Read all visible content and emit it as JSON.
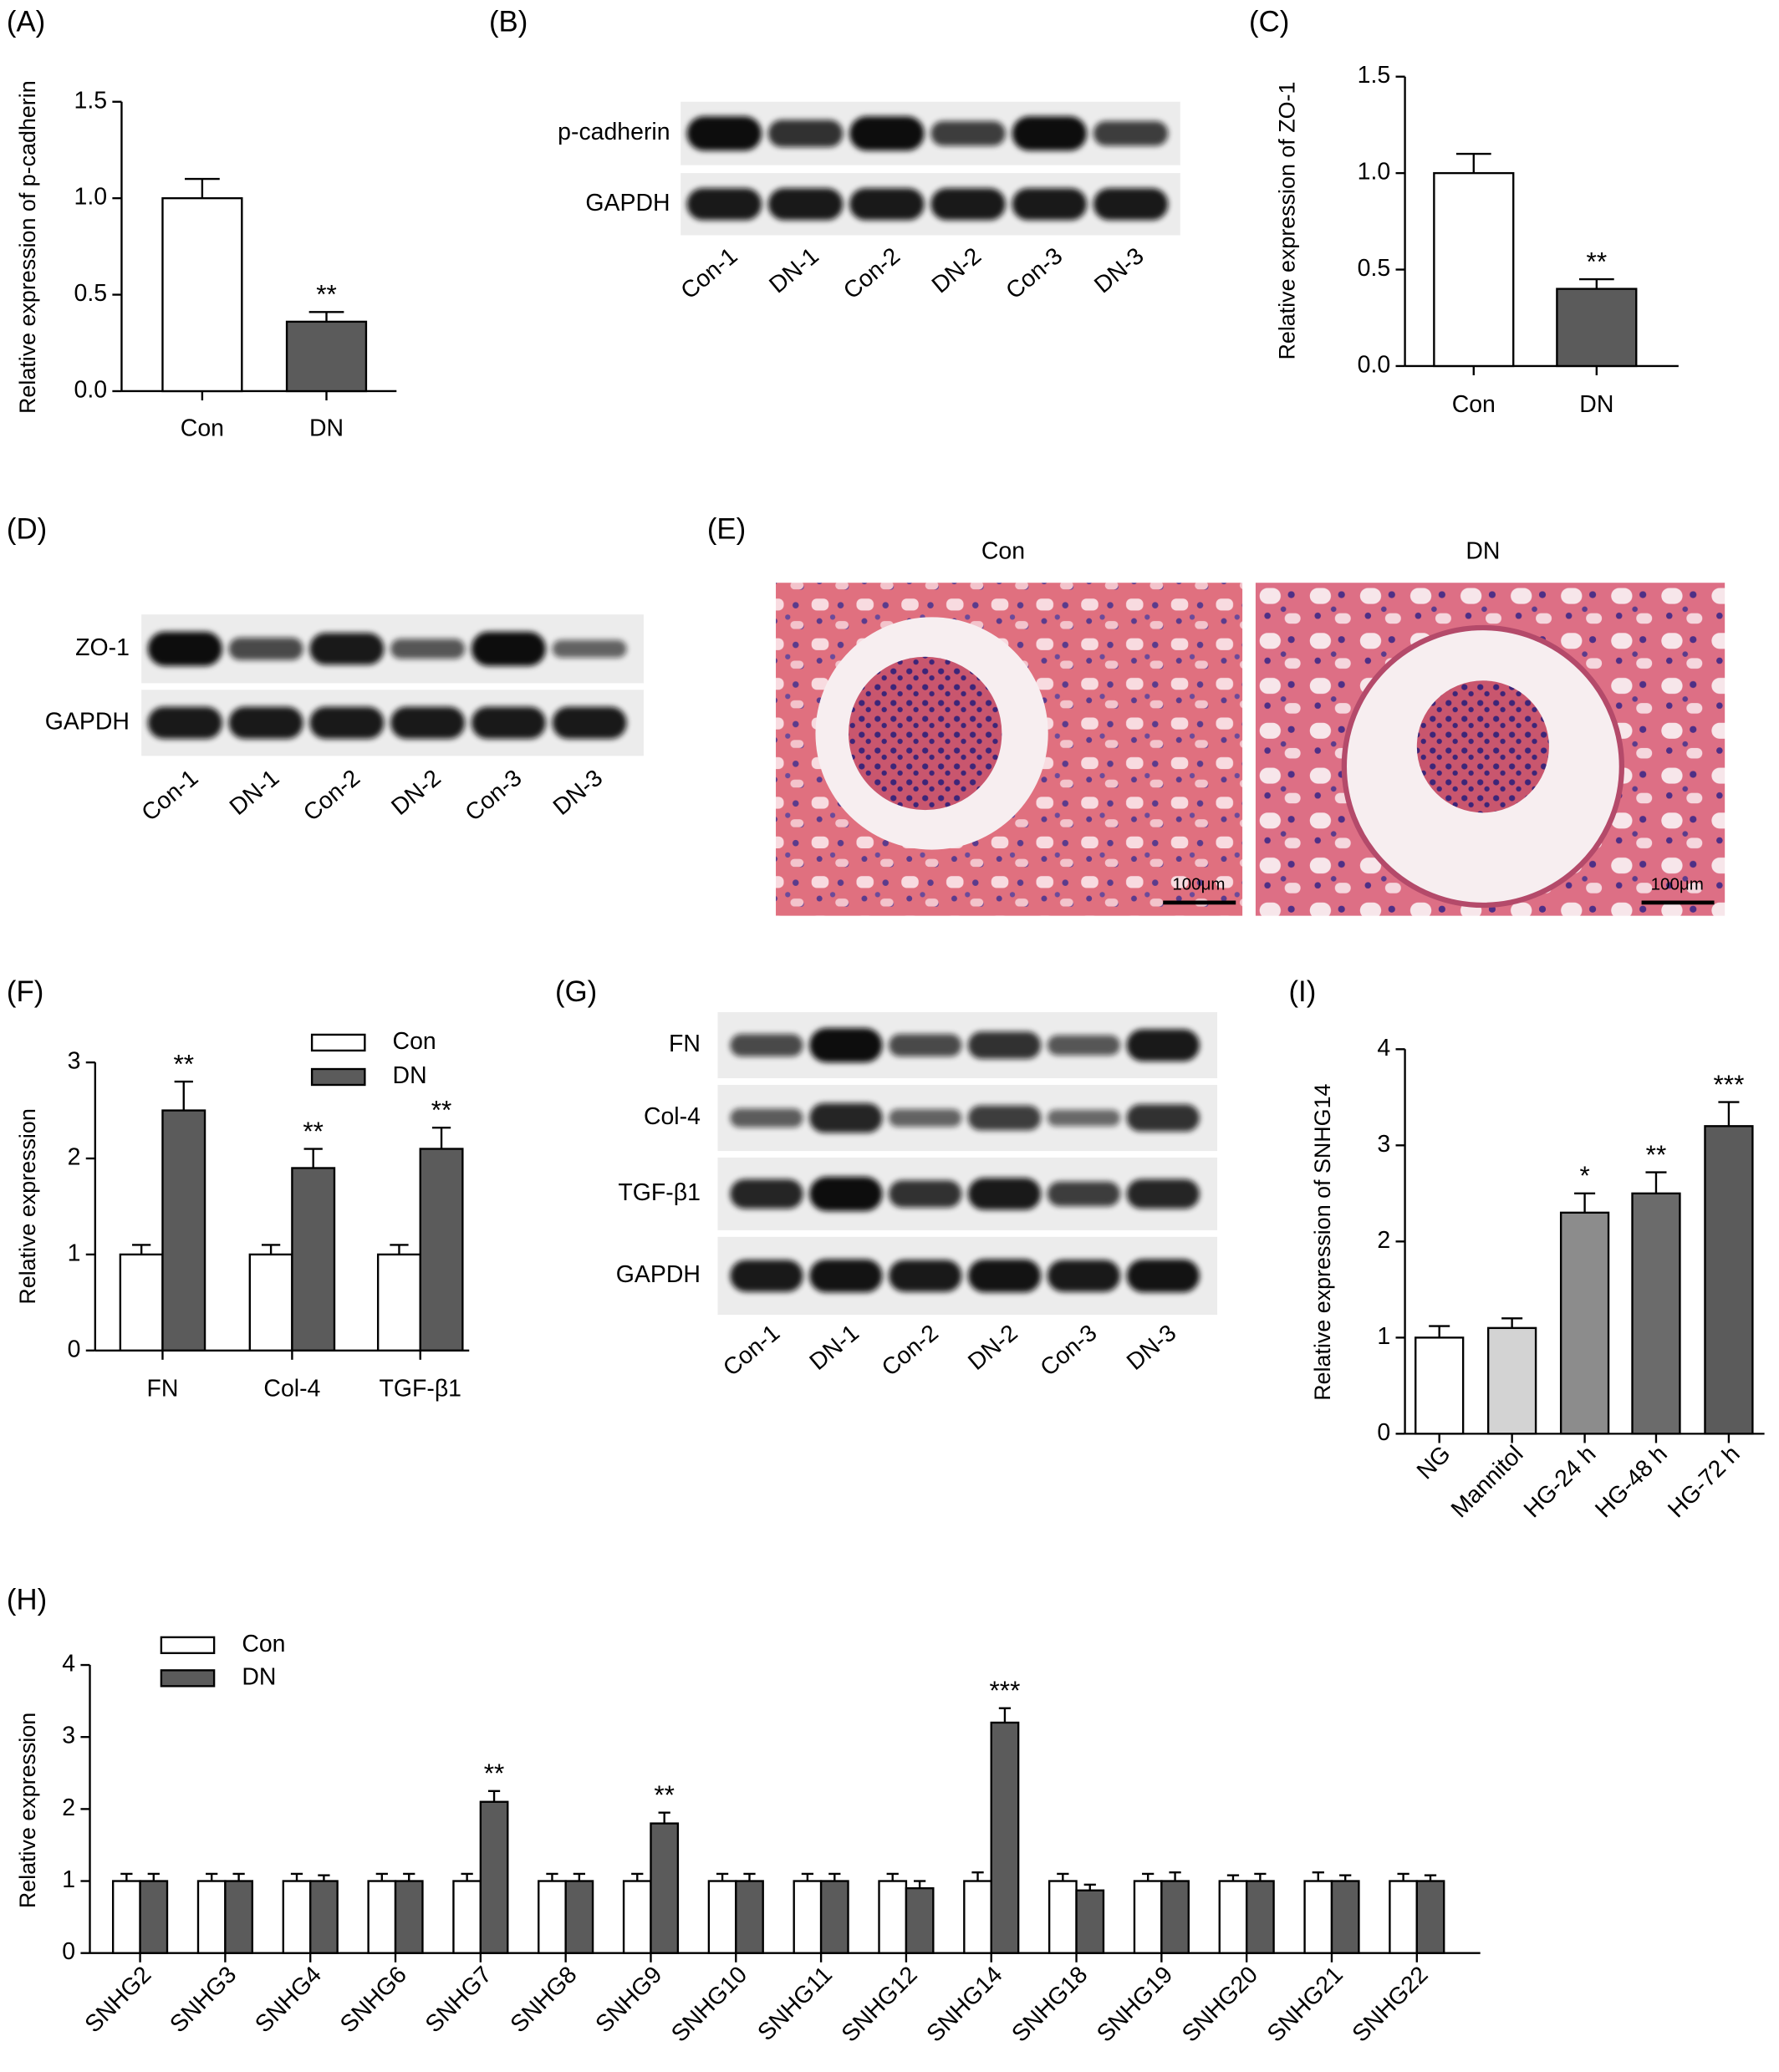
{
  "chart_data": [
    {
      "type": "bar",
      "panel_label": "(A)",
      "ylabel": "Relative expression of p-cadherin",
      "categories": [
        "Con",
        "DN"
      ],
      "values": [
        1.0,
        0.36
      ],
      "errors": [
        0.1,
        0.05
      ],
      "colors": [
        "#ffffff",
        "#5b5b5b"
      ],
      "sig_labels": [
        null,
        "**"
      ],
      "ylim": [
        0,
        1.5
      ],
      "yticks": [
        {
          "value": 0,
          "label": "0.0"
        },
        0.5,
        {
          "value": 1,
          "label": "1.0"
        },
        1.5
      ]
    },
    {
      "type": "bar",
      "panel_label": "(C)",
      "ylabel": "Relative expression of ZO-1",
      "categories": [
        "Con",
        "DN"
      ],
      "values": [
        1.0,
        0.4
      ],
      "errors": [
        0.1,
        0.05
      ],
      "colors": [
        "#ffffff",
        "#5b5b5b"
      ],
      "sig_labels": [
        null,
        "**"
      ],
      "ylim": [
        0,
        1.5
      ],
      "yticks": [
        {
          "value": 0,
          "label": "0.0"
        },
        0.5,
        {
          "value": 1,
          "label": "1.0"
        },
        1.5
      ]
    },
    {
      "type": "bar",
      "panel_label": "(F)",
      "ylabel": "Relative expression",
      "categories": [
        "FN",
        "Col-4",
        "TGF-β1"
      ],
      "series": [
        {
          "name": "Con",
          "color": "#ffffff",
          "values": [
            1,
            1,
            1
          ],
          "errors": [
            0.1,
            0.1,
            0.1
          ],
          "sig_labels": [
            null,
            null,
            null
          ]
        },
        {
          "name": "DN",
          "color": "#5b5b5b",
          "values": [
            2.5,
            1.9,
            2.1
          ],
          "errors": [
            0.3,
            0.2,
            0.22
          ],
          "sig_labels": [
            "**",
            "**",
            "**"
          ]
        }
      ],
      "ylim": [
        0,
        3
      ],
      "yticks": [
        0,
        1,
        2,
        3
      ],
      "legend": "top-right"
    },
    {
      "type": "bar",
      "panel_label": "(H)",
      "ylabel": "Relative expression",
      "categories": [
        "SNHG2",
        "SNHG3",
        "SNHG4",
        "SNHG6",
        "SNHG7",
        "SNHG8",
        "SNHG9",
        "SNHG10",
        "SNHG11",
        "SNHG12",
        "SNHG14",
        "SNHG18",
        "SNHG19",
        "SNHG20",
        "SNHG21",
        "SNHG22"
      ],
      "series": [
        {
          "name": "Con",
          "color": "#ffffff",
          "values": [
            1,
            1,
            1,
            1,
            1,
            1,
            1,
            1,
            1,
            1,
            1,
            1,
            1,
            1,
            1,
            1
          ],
          "errors": [
            0.1,
            0.1,
            0.1,
            0.1,
            0.1,
            0.1,
            0.1,
            0.1,
            0.1,
            0.1,
            0.12,
            0.1,
            0.1,
            0.08,
            0.12,
            0.1
          ],
          "sig_labels": [
            null,
            null,
            null,
            null,
            null,
            null,
            null,
            null,
            null,
            null,
            null,
            null,
            null,
            null,
            null,
            null
          ]
        },
        {
          "name": "DN",
          "color": "#5b5b5b",
          "values": [
            1,
            1,
            1,
            1,
            2.1,
            1,
            1.8,
            1,
            1,
            0.9,
            3.2,
            0.87,
            1,
            1,
            1,
            1
          ],
          "errors": [
            0.1,
            0.1,
            0.08,
            0.1,
            0.15,
            0.1,
            0.15,
            0.1,
            0.1,
            0.1,
            0.2,
            0.08,
            0.12,
            0.1,
            0.08,
            0.08
          ],
          "sig_labels": [
            null,
            null,
            null,
            null,
            "**",
            null,
            "**",
            null,
            null,
            null,
            "***",
            null,
            null,
            null,
            null,
            null
          ]
        }
      ],
      "ylim": [
        0,
        4
      ],
      "yticks": [
        0,
        1,
        2,
        3,
        4
      ],
      "legend": "top-left"
    },
    {
      "type": "bar",
      "panel_label": "(I)",
      "ylabel": "Relative expression of SNHG14",
      "categories": [
        "NG",
        "Mannitol",
        "HG-24 h",
        "HG-48 h",
        "HG-72 h"
      ],
      "values": [
        1,
        1.1,
        2.3,
        2.5,
        3.2
      ],
      "errors": [
        0.12,
        0.1,
        0.2,
        0.22,
        0.25
      ],
      "colors": [
        "#ffffff",
        "#d3d3d3",
        "#8c8c8c",
        "#6b6b6b",
        "#5b5b5b"
      ],
      "sig_labels": [
        null,
        null,
        "*",
        "**",
        "***"
      ],
      "ylim": [
        0,
        4
      ],
      "yticks": [
        0,
        1,
        2,
        3,
        4
      ]
    }
  ],
  "blots": [
    {
      "panel_label": "(B)",
      "rows": [
        "p-cadherin",
        "GAPDH"
      ],
      "lanes": [
        "Con-1",
        "DN-1",
        "Con-2",
        "DN-2",
        "Con-3",
        "DN-3"
      ]
    },
    {
      "panel_label": "(D)",
      "rows": [
        "ZO-1",
        "GAPDH"
      ],
      "lanes": [
        "Con-1",
        "DN-1",
        "Con-2",
        "DN-2",
        "Con-3",
        "DN-3"
      ]
    },
    {
      "panel_label": "(G)",
      "rows": [
        "FN",
        "Col-4",
        "TGF-β1",
        "GAPDH"
      ],
      "lanes": [
        "Con-1",
        "DN-1",
        "Con-2",
        "DN-2",
        "Con-3",
        "DN-3"
      ]
    }
  ],
  "histology": {
    "panel_label": "(E)",
    "images": [
      {
        "title": "Con",
        "scale_bar": "100μm"
      },
      {
        "title": "DN",
        "scale_bar": "100μm"
      }
    ]
  }
}
